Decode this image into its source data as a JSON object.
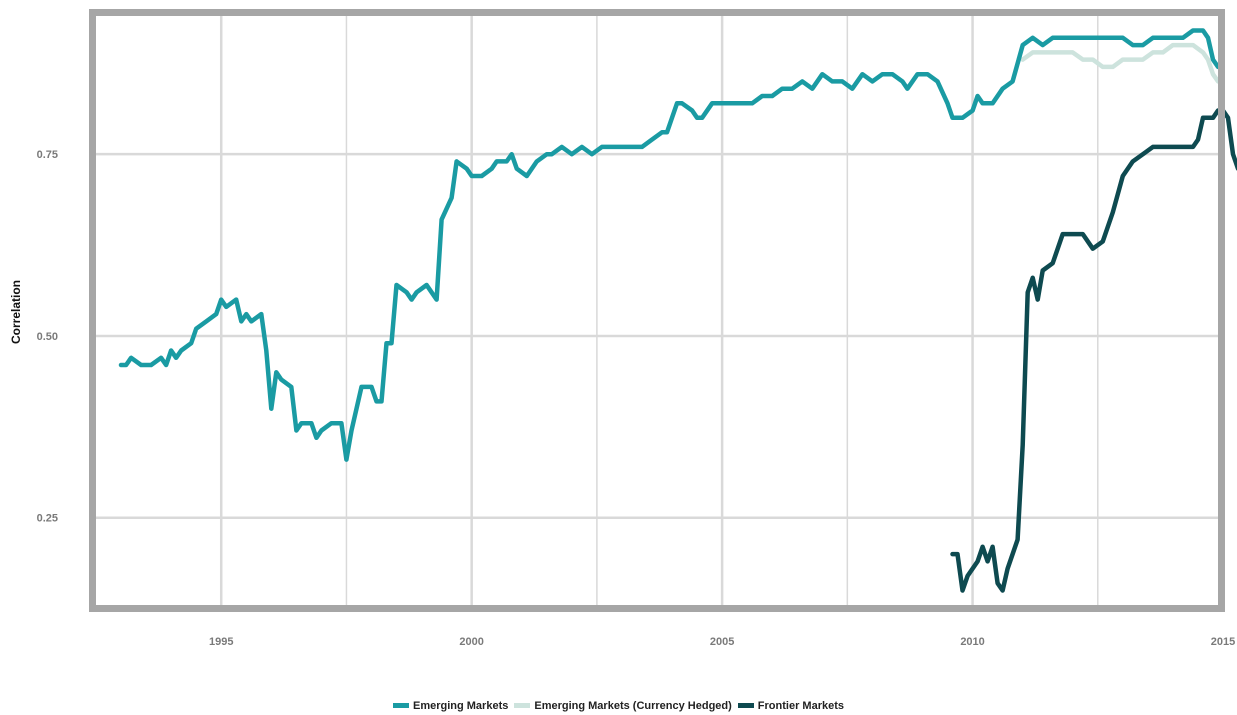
{
  "chart_data": {
    "type": "line",
    "title": "",
    "xlabel": "",
    "ylabel": "Correlation",
    "xlim": [
      1992.5,
      2014.9
    ],
    "ylim": [
      0.13,
      0.94
    ],
    "x_ticks": [
      1995,
      2000,
      2005,
      2010,
      2015
    ],
    "x_tick_labels": [
      "1995",
      "2000",
      "2005",
      "2010",
      "2015"
    ],
    "y_ticks": [
      0.25,
      0.5,
      0.75
    ],
    "y_tick_labels": [
      "0.25",
      "0.50",
      "0.75"
    ],
    "grid": true,
    "legend_position": "bottom",
    "series": [
      {
        "name": "Emerging Markets",
        "color": "#1a9ba3",
        "points": [
          [
            1993.0,
            0.46
          ],
          [
            1993.1,
            0.46
          ],
          [
            1993.2,
            0.47
          ],
          [
            1993.4,
            0.46
          ],
          [
            1993.6,
            0.46
          ],
          [
            1993.8,
            0.47
          ],
          [
            1993.9,
            0.46
          ],
          [
            1994.0,
            0.48
          ],
          [
            1994.1,
            0.47
          ],
          [
            1994.2,
            0.48
          ],
          [
            1994.4,
            0.49
          ],
          [
            1994.5,
            0.51
          ],
          [
            1994.7,
            0.52
          ],
          [
            1994.9,
            0.53
          ],
          [
            1995.0,
            0.55
          ],
          [
            1995.1,
            0.54
          ],
          [
            1995.3,
            0.55
          ],
          [
            1995.4,
            0.52
          ],
          [
            1995.5,
            0.53
          ],
          [
            1995.6,
            0.52
          ],
          [
            1995.8,
            0.53
          ],
          [
            1995.9,
            0.48
          ],
          [
            1996.0,
            0.4
          ],
          [
            1996.1,
            0.45
          ],
          [
            1996.2,
            0.44
          ],
          [
            1996.4,
            0.43
          ],
          [
            1996.5,
            0.37
          ],
          [
            1996.6,
            0.38
          ],
          [
            1996.8,
            0.38
          ],
          [
            1996.9,
            0.36
          ],
          [
            1997.0,
            0.37
          ],
          [
            1997.2,
            0.38
          ],
          [
            1997.4,
            0.38
          ],
          [
            1997.5,
            0.33
          ],
          [
            1997.6,
            0.37
          ],
          [
            1997.8,
            0.43
          ],
          [
            1998.0,
            0.43
          ],
          [
            1998.1,
            0.41
          ],
          [
            1998.2,
            0.41
          ],
          [
            1998.3,
            0.49
          ],
          [
            1998.4,
            0.49
          ],
          [
            1998.5,
            0.57
          ],
          [
            1998.7,
            0.56
          ],
          [
            1998.8,
            0.55
          ],
          [
            1998.9,
            0.56
          ],
          [
            1999.1,
            0.57
          ],
          [
            1999.2,
            0.56
          ],
          [
            1999.3,
            0.55
          ],
          [
            1999.4,
            0.66
          ],
          [
            1999.6,
            0.69
          ],
          [
            1999.7,
            0.74
          ],
          [
            1999.9,
            0.73
          ],
          [
            2000.0,
            0.72
          ],
          [
            2000.2,
            0.72
          ],
          [
            2000.4,
            0.73
          ],
          [
            2000.5,
            0.74
          ],
          [
            2000.7,
            0.74
          ],
          [
            2000.8,
            0.75
          ],
          [
            2000.9,
            0.73
          ],
          [
            2001.1,
            0.72
          ],
          [
            2001.3,
            0.74
          ],
          [
            2001.5,
            0.75
          ],
          [
            2001.6,
            0.75
          ],
          [
            2001.8,
            0.76
          ],
          [
            2002.0,
            0.75
          ],
          [
            2002.2,
            0.76
          ],
          [
            2002.4,
            0.75
          ],
          [
            2002.6,
            0.76
          ],
          [
            2002.8,
            0.76
          ],
          [
            2003.0,
            0.76
          ],
          [
            2003.2,
            0.76
          ],
          [
            2003.4,
            0.76
          ],
          [
            2003.6,
            0.77
          ],
          [
            2003.8,
            0.78
          ],
          [
            2003.9,
            0.78
          ],
          [
            2004.0,
            0.8
          ],
          [
            2004.1,
            0.82
          ],
          [
            2004.2,
            0.82
          ],
          [
            2004.4,
            0.81
          ],
          [
            2004.5,
            0.8
          ],
          [
            2004.6,
            0.8
          ],
          [
            2004.8,
            0.82
          ],
          [
            2005.0,
            0.82
          ],
          [
            2005.2,
            0.82
          ],
          [
            2005.4,
            0.82
          ],
          [
            2005.6,
            0.82
          ],
          [
            2005.8,
            0.83
          ],
          [
            2006.0,
            0.83
          ],
          [
            2006.2,
            0.84
          ],
          [
            2006.4,
            0.84
          ],
          [
            2006.6,
            0.85
          ],
          [
            2006.8,
            0.84
          ],
          [
            2007.0,
            0.86
          ],
          [
            2007.2,
            0.85
          ],
          [
            2007.4,
            0.85
          ],
          [
            2007.6,
            0.84
          ],
          [
            2007.8,
            0.86
          ],
          [
            2008.0,
            0.85
          ],
          [
            2008.2,
            0.86
          ],
          [
            2008.4,
            0.86
          ],
          [
            2008.6,
            0.85
          ],
          [
            2008.7,
            0.84
          ],
          [
            2008.9,
            0.86
          ],
          [
            2009.1,
            0.86
          ],
          [
            2009.3,
            0.85
          ],
          [
            2009.5,
            0.82
          ],
          [
            2009.6,
            0.8
          ],
          [
            2009.8,
            0.8
          ],
          [
            2010.0,
            0.81
          ],
          [
            2010.1,
            0.83
          ],
          [
            2010.2,
            0.82
          ],
          [
            2010.4,
            0.82
          ],
          [
            2010.6,
            0.84
          ],
          [
            2010.8,
            0.85
          ],
          [
            2011.0,
            0.9
          ],
          [
            2011.2,
            0.91
          ],
          [
            2011.4,
            0.9
          ],
          [
            2011.6,
            0.91
          ],
          [
            2011.8,
            0.91
          ],
          [
            2012.0,
            0.91
          ],
          [
            2012.2,
            0.91
          ],
          [
            2012.5,
            0.91
          ],
          [
            2012.8,
            0.91
          ],
          [
            2013.0,
            0.91
          ],
          [
            2013.2,
            0.9
          ],
          [
            2013.4,
            0.9
          ],
          [
            2013.6,
            0.91
          ],
          [
            2013.8,
            0.91
          ],
          [
            2014.0,
            0.91
          ],
          [
            2014.2,
            0.91
          ],
          [
            2014.4,
            0.92
          ],
          [
            2014.6,
            0.92
          ],
          [
            2014.7,
            0.91
          ],
          [
            2014.8,
            0.88
          ],
          [
            2014.9,
            0.87
          ]
        ]
      },
      {
        "name": "Emerging Markets (Currency Hedged)",
        "color": "#cde3dd",
        "points": [
          [
            2011.0,
            0.88
          ],
          [
            2011.2,
            0.89
          ],
          [
            2011.4,
            0.89
          ],
          [
            2011.6,
            0.89
          ],
          [
            2011.8,
            0.89
          ],
          [
            2012.0,
            0.89
          ],
          [
            2012.2,
            0.88
          ],
          [
            2012.4,
            0.88
          ],
          [
            2012.6,
            0.87
          ],
          [
            2012.8,
            0.87
          ],
          [
            2013.0,
            0.88
          ],
          [
            2013.2,
            0.88
          ],
          [
            2013.4,
            0.88
          ],
          [
            2013.6,
            0.89
          ],
          [
            2013.8,
            0.89
          ],
          [
            2014.0,
            0.9
          ],
          [
            2014.2,
            0.9
          ],
          [
            2014.4,
            0.9
          ],
          [
            2014.6,
            0.89
          ],
          [
            2014.7,
            0.88
          ],
          [
            2014.8,
            0.86
          ],
          [
            2014.9,
            0.85
          ]
        ]
      },
      {
        "name": "Frontier Markets",
        "color": "#0e4a50",
        "points": [
          [
            2009.6,
            0.2
          ],
          [
            2009.7,
            0.2
          ],
          [
            2009.8,
            0.15
          ],
          [
            2009.9,
            0.17
          ],
          [
            2010.0,
            0.18
          ],
          [
            2010.1,
            0.19
          ],
          [
            2010.2,
            0.21
          ],
          [
            2010.3,
            0.19
          ],
          [
            2010.4,
            0.21
          ],
          [
            2010.5,
            0.16
          ],
          [
            2010.6,
            0.15
          ],
          [
            2010.7,
            0.18
          ],
          [
            2010.8,
            0.2
          ],
          [
            2010.9,
            0.22
          ],
          [
            2011.0,
            0.35
          ],
          [
            2011.1,
            0.56
          ],
          [
            2011.2,
            0.58
          ],
          [
            2011.3,
            0.55
          ],
          [
            2011.4,
            0.59
          ],
          [
            2011.6,
            0.6
          ],
          [
            2011.8,
            0.64
          ],
          [
            2012.0,
            0.64
          ],
          [
            2012.2,
            0.64
          ],
          [
            2012.4,
            0.62
          ],
          [
            2012.6,
            0.63
          ],
          [
            2012.8,
            0.67
          ],
          [
            2013.0,
            0.72
          ],
          [
            2013.2,
            0.74
          ],
          [
            2013.4,
            0.75
          ],
          [
            2013.6,
            0.76
          ],
          [
            2013.8,
            0.76
          ],
          [
            2014.0,
            0.76
          ],
          [
            2014.2,
            0.76
          ],
          [
            2014.4,
            0.76
          ],
          [
            2014.5,
            0.77
          ],
          [
            2014.6,
            0.8
          ],
          [
            2014.8,
            0.8
          ],
          [
            2014.9,
            0.81
          ],
          [
            2015.0,
            0.81
          ],
          [
            2015.1,
            0.8
          ],
          [
            2015.2,
            0.75
          ],
          [
            2015.3,
            0.73
          ],
          [
            2015.4,
            0.77
          ]
        ]
      }
    ]
  }
}
